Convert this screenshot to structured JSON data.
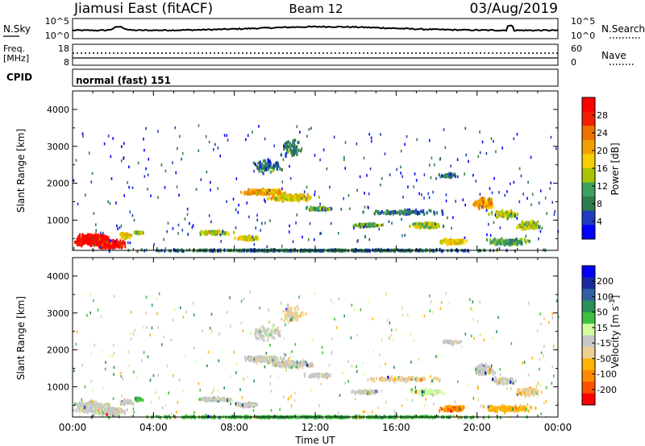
{
  "header": {
    "station": "Jiamusi East (fitACF)",
    "beam": "Beam 12",
    "date": "03/Aug/2019"
  },
  "noise_panel": {
    "left_label": "N.Sky",
    "left_ticks": [
      "10^5",
      "10^0"
    ],
    "right_ticks": [
      "10^5",
      "10^0"
    ],
    "right_label": "N.Search"
  },
  "freq_panel": {
    "left_label_1": "Freq.",
    "left_label_2": "[MHz]",
    "left_ticks": [
      "18",
      "8"
    ],
    "right_ticks": [
      "60",
      "0"
    ],
    "right_label": "Nave"
  },
  "cpid_panel": {
    "label": "CPID",
    "text": "normal (fast) 151"
  },
  "colors": {
    "power": [
      "#0000ff",
      "#1f3cc0",
      "#2f7a4a",
      "#3fa060",
      "#a8c400",
      "#f4d000",
      "#f0a000",
      "#f07000",
      "#f02000",
      "#ff0000"
    ],
    "velocity": [
      "#ff0000",
      "#ff5000",
      "#ff8a00",
      "#ffb400",
      "#f0d090",
      "#c8c8c8",
      "#d0ffa0",
      "#40c040",
      "#2a8f5a",
      "#3060a0",
      "#1a2aa0",
      "#0000ff"
    ]
  },
  "chart_data": [
    {
      "type": "heatmap",
      "name": "Power",
      "xlabel": "",
      "ylabel": "Slant Range [km]",
      "xlim": [
        "00:00",
        "24:00"
      ],
      "ylim": [
        180,
        4500
      ],
      "y_ticks": [
        "4000",
        "3000",
        "2000",
        "1000"
      ],
      "colorbar": {
        "label": "Power [dB]",
        "ticks": [
          "28",
          "24",
          "20",
          "16",
          "12",
          "8",
          "4"
        ],
        "range": [
          0,
          30
        ]
      }
    },
    {
      "type": "heatmap",
      "name": "Velocity",
      "xlabel": "Time UT",
      "ylabel": "Slant Range [km]",
      "xlim": [
        "00:00",
        "24:00"
      ],
      "ylim": [
        180,
        4500
      ],
      "x_ticks": [
        "00:00",
        "04:00",
        "08:00",
        "12:00",
        "16:00",
        "20:00",
        "00:00"
      ],
      "y_ticks": [
        "4000",
        "3000",
        "2000",
        "1000"
      ],
      "colorbar": {
        "label": "Velocity [m s^-1]",
        "ticks": [
          "200",
          "100",
          "50",
          "15",
          "-15",
          "-50",
          "-100",
          "-200"
        ]
      }
    }
  ]
}
